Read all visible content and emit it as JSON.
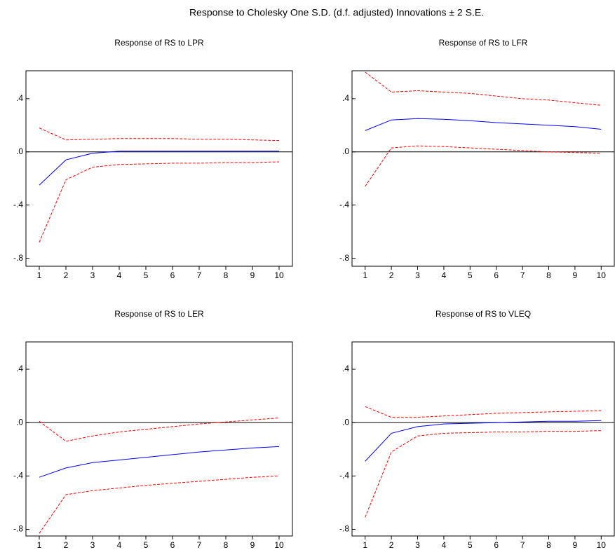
{
  "title": "Response to Cholesky One S.D. (d.f. adjusted) Innovations ± 2 S.E.",
  "chart_data": [
    {
      "type": "line",
      "title": "Response of RS to LPR",
      "x": [
        1,
        2,
        3,
        4,
        5,
        6,
        7,
        8,
        9,
        10
      ],
      "xlim": [
        0.5,
        10.5
      ],
      "xticks": [
        1,
        2,
        3,
        4,
        5,
        6,
        7,
        8,
        9,
        10
      ],
      "ylim": [
        -0.86,
        0.61
      ],
      "yticks": [
        {
          "value": 0.4,
          "label": ".4"
        },
        {
          "value": 0,
          "label": ".0"
        },
        {
          "value": -0.4,
          "label": "-.4"
        },
        {
          "value": -0.8,
          "label": "-.8"
        }
      ],
      "zero_line": true,
      "series": [
        {
          "color": "#0000ff",
          "style": "solid",
          "values": [
            -0.25,
            -0.06,
            -0.01,
            0.005,
            0.005,
            0.005,
            0.005,
            0.005,
            0.005,
            0.005
          ]
        },
        {
          "color": "#ff0000",
          "style": "dashed",
          "values": [
            0.18,
            0.09,
            0.095,
            0.1,
            0.1,
            0.1,
            0.095,
            0.095,
            0.09,
            0.085
          ]
        },
        {
          "color": "#ff0000",
          "style": "dashed",
          "values": [
            -0.68,
            -0.21,
            -0.115,
            -0.095,
            -0.09,
            -0.085,
            -0.085,
            -0.08,
            -0.08,
            -0.075
          ]
        }
      ]
    },
    {
      "type": "line",
      "title": "Response of RS to LFR",
      "x": [
        1,
        2,
        3,
        4,
        5,
        6,
        7,
        8,
        9,
        10
      ],
      "xlim": [
        0.5,
        10.5
      ],
      "xticks": [
        1,
        2,
        3,
        4,
        5,
        6,
        7,
        8,
        9,
        10
      ],
      "ylim": [
        -0.86,
        0.61
      ],
      "yticks": [
        {
          "value": 0.4,
          "label": ".4"
        },
        {
          "value": 0,
          "label": ".0"
        },
        {
          "value": -0.4,
          "label": "-.4"
        },
        {
          "value": -0.8,
          "label": "-.8"
        }
      ],
      "zero_line": true,
      "series": [
        {
          "color": "#0000ff",
          "style": "solid",
          "values": [
            0.16,
            0.24,
            0.25,
            0.245,
            0.235,
            0.22,
            0.21,
            0.2,
            0.19,
            0.17
          ]
        },
        {
          "color": "#ff0000",
          "style": "dashed",
          "values": [
            0.6,
            0.45,
            0.46,
            0.45,
            0.44,
            0.42,
            0.4,
            0.39,
            0.37,
            0.35
          ]
        },
        {
          "color": "#ff0000",
          "style": "dashed",
          "values": [
            -0.26,
            0.03,
            0.045,
            0.04,
            0.03,
            0.02,
            0.01,
            0.0,
            -0.005,
            -0.01
          ]
        }
      ]
    },
    {
      "type": "line",
      "title": "Response of RS to LER",
      "x": [
        1,
        2,
        3,
        4,
        5,
        6,
        7,
        8,
        9,
        10
      ],
      "xlim": [
        0.5,
        10.5
      ],
      "xticks": [
        1,
        2,
        3,
        4,
        5,
        6,
        7,
        8,
        9,
        10
      ],
      "ylim": [
        -0.85,
        0.605
      ],
      "yticks": [
        {
          "value": 0.4,
          "label": ".4"
        },
        {
          "value": 0,
          "label": ".0"
        },
        {
          "value": -0.4,
          "label": "-.4"
        },
        {
          "value": -0.8,
          "label": "-.8"
        }
      ],
      "zero_line": true,
      "series": [
        {
          "color": "#0000ff",
          "style": "solid",
          "values": [
            -0.41,
            -0.34,
            -0.3,
            -0.28,
            -0.26,
            -0.24,
            -0.22,
            -0.205,
            -0.19,
            -0.18
          ]
        },
        {
          "color": "#ff0000",
          "style": "dashed",
          "values": [
            0.01,
            -0.14,
            -0.1,
            -0.07,
            -0.05,
            -0.03,
            -0.01,
            0.005,
            0.02,
            0.035
          ]
        },
        {
          "color": "#ff0000",
          "style": "dashed",
          "values": [
            -0.83,
            -0.54,
            -0.51,
            -0.49,
            -0.47,
            -0.455,
            -0.44,
            -0.425,
            -0.41,
            -0.4
          ]
        }
      ]
    },
    {
      "type": "line",
      "title": "Response of RS to VLEQ",
      "x": [
        1,
        2,
        3,
        4,
        5,
        6,
        7,
        8,
        9,
        10
      ],
      "xlim": [
        0.5,
        10.5
      ],
      "xticks": [
        1,
        2,
        3,
        4,
        5,
        6,
        7,
        8,
        9,
        10
      ],
      "ylim": [
        -0.85,
        0.605
      ],
      "yticks": [
        {
          "value": 0.4,
          "label": ".4"
        },
        {
          "value": 0,
          "label": ".0"
        },
        {
          "value": -0.4,
          "label": "-.4"
        },
        {
          "value": -0.8,
          "label": "-.8"
        }
      ],
      "zero_line": true,
      "series": [
        {
          "color": "#0000ff",
          "style": "solid",
          "values": [
            -0.29,
            -0.08,
            -0.03,
            -0.01,
            -0.005,
            0.0,
            0.005,
            0.01,
            0.01,
            0.015
          ]
        },
        {
          "color": "#ff0000",
          "style": "dashed",
          "values": [
            0.12,
            0.04,
            0.04,
            0.05,
            0.06,
            0.07,
            0.075,
            0.08,
            0.085,
            0.09
          ]
        },
        {
          "color": "#ff0000",
          "style": "dashed",
          "values": [
            -0.71,
            -0.22,
            -0.1,
            -0.08,
            -0.075,
            -0.07,
            -0.07,
            -0.065,
            -0.065,
            -0.06
          ]
        }
      ]
    }
  ]
}
